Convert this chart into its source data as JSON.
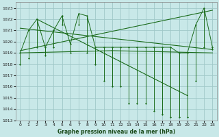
{
  "background_color": "#c8e8e8",
  "grid_color": "#a0c8c8",
  "line_color": "#1a6b1a",
  "xlabel": "Graphe pression niveau de la mer (hPa)",
  "ylim": [
    1013,
    1023.5
  ],
  "xlim": [
    -0.5,
    23.5
  ],
  "yticks": [
    1013,
    1014,
    1015,
    1016,
    1017,
    1018,
    1019,
    1020,
    1021,
    1022,
    1023
  ],
  "xticks": [
    0,
    1,
    2,
    3,
    4,
    5,
    6,
    7,
    8,
    9,
    10,
    11,
    12,
    13,
    14,
    15,
    16,
    17,
    18,
    19,
    20,
    21,
    22,
    23
  ],
  "hours": [
    0,
    1,
    2,
    3,
    4,
    5,
    6,
    7,
    8,
    9,
    10,
    11,
    12,
    13,
    14,
    15,
    16,
    17,
    18,
    19,
    20,
    21,
    22,
    23
  ],
  "p_top": [
    1019.0,
    1021.0,
    1022.0,
    1019.5,
    1021.0,
    1022.3,
    1019.8,
    1022.5,
    1022.3,
    1019.5,
    1019.5,
    1019.5,
    1019.5,
    1019.5,
    1019.5,
    1019.5,
    1019.5,
    1019.5,
    1019.5,
    1019.0,
    1019.0,
    1021.5,
    1023.0,
    1019.5
  ],
  "p_bot": [
    1018.0,
    1019.0,
    1020.0,
    1019.0,
    1020.0,
    1021.8,
    1019.3,
    1021.8,
    1019.5,
    1018.5,
    1018.0,
    1017.5,
    1017.0,
    1016.5,
    1016.5,
    1015.5,
    1014.8,
    1014.5,
    1014.5,
    1014.0,
    1015.0,
    1016.5,
    1019.5,
    1019.3
  ],
  "p_low": [
    1018.0,
    1018.5,
    1019.5,
    1018.8,
    1019.5,
    1021.5,
    1019.0,
    1021.5,
    1019.0,
    1018.0,
    1016.5,
    1016.0,
    1016.0,
    1015.0,
    1016.0,
    1015.5,
    1014.8,
    1014.5,
    1014.5,
    1014.0,
    1015.0,
    1016.5,
    1019.5,
    1019.3
  ],
  "p_min": [
    1018.0,
    1018.5,
    1019.5,
    1018.8,
    1019.5,
    1021.5,
    1019.0,
    1021.5,
    1019.0,
    1018.0,
    1016.5,
    1016.0,
    1016.0,
    1014.5,
    1014.5,
    1014.5,
    1013.8,
    1013.5,
    1013.3,
    1013.3,
    1013.3,
    1016.5,
    1019.5,
    1019.3
  ],
  "trend1": {
    "x": [
      0,
      23
    ],
    "y": [
      1019.2,
      1022.8
    ]
  },
  "trend2": {
    "x": [
      0,
      23
    ],
    "y": [
      1021.2,
      1019.3
    ]
  },
  "trend3": {
    "x": [
      0,
      11
    ],
    "y": [
      1019.0,
      1019.2
    ]
  },
  "trend4": {
    "x": [
      11,
      23
    ],
    "y": [
      1019.2,
      1019.0
    ]
  },
  "trend5": {
    "x": [
      2,
      20
    ],
    "y": [
      1022.0,
      1015.2
    ]
  }
}
